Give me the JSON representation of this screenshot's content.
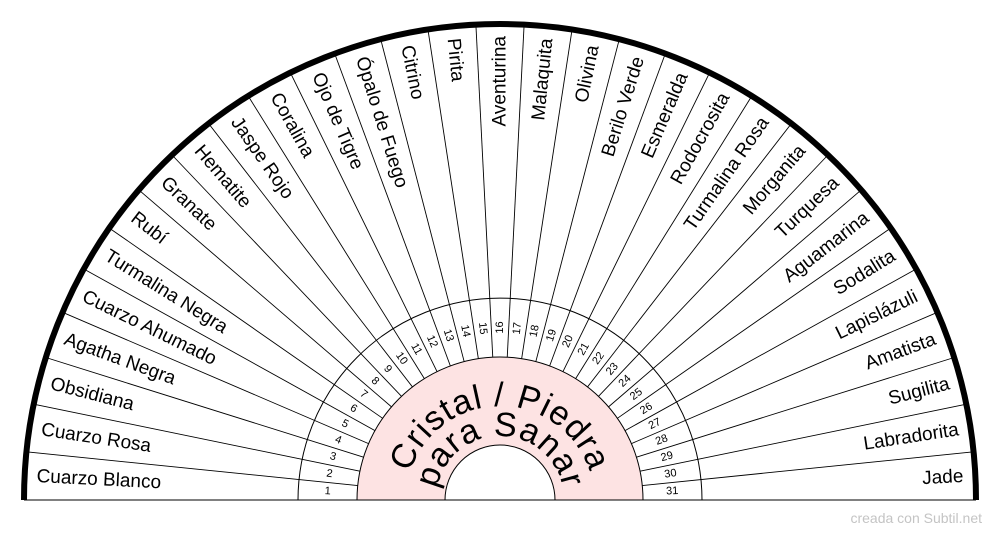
{
  "center": {
    "line1": "Cristal / Piedra",
    "line2": "para Sanar"
  },
  "items": [
    "Cuarzo Blanco",
    "Cuarzo Rosa",
    "Obsidiana",
    "Agatha Negra",
    "Cuarzo Ahumado",
    "Turmalina Negra",
    "Rubí",
    "Granate",
    "Hematite",
    "Jaspe Rojo",
    "Coralina",
    "Ojo de Tigre",
    "Ópalo de Fuego",
    "Citrino",
    "Pirita",
    "Aventurina",
    "Malaquita",
    "Olivina",
    "Berilo Verde",
    "Esmeralda",
    "Rodocrosita",
    "Turmalina Rosa",
    "Morganita",
    "Turquesa",
    "Aguamarina",
    "Sodalita",
    "Lapislázuli",
    "Amatista",
    "Sugilita",
    "Labradorita",
    "Jade"
  ],
  "credit": "creada con Subtil.net",
  "colors": {
    "center_fill": "#fde3e3",
    "line": "#000000",
    "outer_arc": "#000000",
    "credit": "#c4c4c4"
  }
}
